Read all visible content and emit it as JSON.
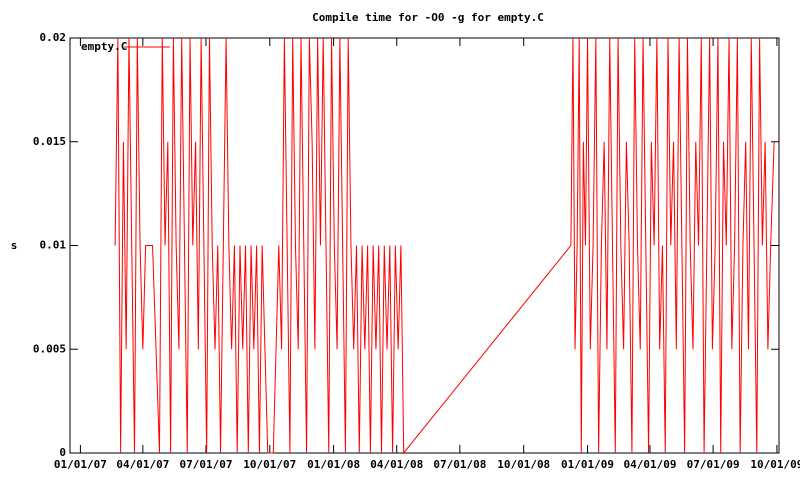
{
  "chart_data": {
    "type": "line",
    "title": "Compile time for -O0 -g for empty.C",
    "y_label": "s",
    "xlim": [
      "12/17/06",
      "10/04/09"
    ],
    "xticks": [
      "01/01/07",
      "04/01/07",
      "07/01/07",
      "10/01/07",
      "01/01/08",
      "04/01/08",
      "07/01/08",
      "10/01/08",
      "01/01/09",
      "04/01/09",
      "07/01/09",
      "10/01/09"
    ],
    "ylim": [
      0,
      0.02
    ],
    "yticks": [
      0,
      0.005,
      0.01,
      0.015,
      0.02
    ],
    "grid": false,
    "legend": "top-left",
    "x": [
      "02/20/07",
      "02/24/07",
      "02/28/07",
      "03/04/07",
      "03/08/07",
      "03/12/07",
      "03/16/07",
      "03/20/07",
      "03/24/07",
      "03/28/07",
      "04/01/07",
      "04/05/07",
      "04/15/07",
      "04/25/07",
      "04/29/07",
      "05/03/07",
      "05/07/07",
      "05/11/07",
      "05/15/07",
      "05/19/07",
      "05/23/07",
      "05/27/07",
      "05/31/07",
      "06/04/07",
      "06/08/07",
      "06/12/07",
      "06/16/07",
      "06/20/07",
      "06/24/07",
      "06/28/07",
      "07/02/07",
      "07/06/07",
      "07/10/07",
      "07/14/07",
      "07/18/07",
      "07/22/07",
      "07/26/07",
      "07/30/07",
      "08/03/07",
      "08/07/07",
      "08/11/07",
      "08/15/07",
      "08/19/07",
      "08/23/07",
      "08/27/07",
      "08/31/07",
      "09/04/07",
      "09/08/07",
      "09/12/07",
      "09/16/07",
      "09/20/07",
      "09/24/07",
      "09/28/07",
      "10/06/07",
      "10/14/07",
      "10/18/07",
      "10/22/07",
      "10/26/07",
      "10/30/07",
      "11/03/07",
      "11/07/07",
      "11/11/07",
      "11/15/07",
      "11/19/07",
      "11/23/07",
      "11/27/07",
      "12/01/07",
      "12/05/07",
      "12/09/07",
      "12/13/07",
      "12/17/07",
      "12/21/07",
      "12/25/07",
      "12/29/07",
      "01/02/08",
      "01/06/08",
      "01/10/08",
      "01/14/08",
      "01/18/08",
      "01/22/08",
      "01/26/08",
      "01/30/08",
      "02/03/08",
      "02/07/08",
      "02/11/08",
      "02/15/08",
      "02/19/08",
      "02/23/08",
      "02/27/08",
      "03/02/08",
      "03/06/08",
      "03/10/08",
      "03/14/08",
      "03/18/08",
      "03/22/08",
      "03/26/08",
      "03/30/08",
      "04/03/08",
      "04/07/08",
      "04/11/08",
      "12/08/08",
      "12/11/08",
      "12/14/08",
      "12/17/08",
      "12/20/08",
      "12/23/08",
      "12/26/08",
      "12/29/08",
      "01/01/09",
      "01/05/09",
      "01/09/09",
      "01/13/09",
      "01/17/09",
      "01/21/09",
      "01/25/09",
      "01/29/09",
      "02/02/09",
      "02/06/09",
      "02/10/09",
      "02/14/09",
      "02/18/09",
      "02/22/09",
      "02/26/09",
      "03/02/09",
      "03/06/09",
      "03/10/09",
      "03/14/09",
      "03/18/09",
      "03/22/09",
      "03/26/09",
      "03/30/09",
      "04/03/09",
      "04/07/09",
      "04/11/09",
      "04/15/09",
      "04/19/09",
      "04/23/09",
      "04/27/09",
      "05/01/09",
      "05/05/09",
      "05/09/09",
      "05/13/09",
      "05/17/09",
      "05/21/09",
      "05/25/09",
      "05/29/09",
      "06/02/09",
      "06/06/09",
      "06/10/09",
      "06/14/09",
      "06/18/09",
      "06/22/09",
      "06/26/09",
      "06/30/09",
      "07/04/09",
      "07/08/09",
      "07/12/09",
      "07/16/09",
      "07/20/09",
      "07/24/09",
      "07/28/09",
      "08/01/09",
      "08/05/09",
      "08/09/09",
      "08/13/09",
      "08/17/09",
      "08/21/09",
      "08/25/09",
      "08/29/09",
      "09/02/09",
      "09/06/09",
      "09/10/09",
      "09/14/09",
      "09/18/09",
      "09/22/09",
      "09/27/09"
    ],
    "series": [
      {
        "name": "empty.C",
        "color": "#ff0000",
        "values": [
          0.01,
          0.02,
          0,
          0.015,
          0.005,
          0.02,
          0.01,
          0,
          0.02,
          0.01,
          0.005,
          0.01,
          0.01,
          0,
          0.02,
          0.01,
          0.015,
          0,
          0.02,
          0.01,
          0.005,
          0.02,
          0.01,
          0,
          0.02,
          0.01,
          0.015,
          0.005,
          0.02,
          0.01,
          0,
          0.02,
          0.01,
          0.005,
          0.01,
          0,
          0.01,
          0.02,
          0.01,
          0.005,
          0.01,
          0,
          0.01,
          0.005,
          0.01,
          0,
          0.01,
          0.005,
          0.01,
          0,
          0.01,
          0.005,
          0,
          0,
          0.01,
          0.005,
          0.02,
          0.01,
          0,
          0.02,
          0.01,
          0.005,
          0.02,
          0.01,
          0,
          0.02,
          0.015,
          0.005,
          0.02,
          0.01,
          0.02,
          0.01,
          0,
          0.02,
          0.01,
          0.005,
          0.02,
          0.01,
          0,
          0.02,
          0.01,
          0.005,
          0.01,
          0,
          0.01,
          0.005,
          0.01,
          0,
          0.01,
          0.005,
          0.01,
          0,
          0.01,
          0.005,
          0.01,
          0,
          0.01,
          0.005,
          0.01,
          0,
          0.01,
          0.02,
          0.005,
          0.01,
          0.02,
          0,
          0.015,
          0.01,
          0.02,
          0.005,
          0.01,
          0.02,
          0,
          0.01,
          0.015,
          0.005,
          0.02,
          0.01,
          0,
          0.02,
          0.01,
          0.005,
          0.015,
          0.01,
          0,
          0.02,
          0.01,
          0.005,
          0.02,
          0.01,
          0,
          0.015,
          0.01,
          0.02,
          0.005,
          0.01,
          0,
          0.02,
          0.01,
          0.015,
          0.005,
          0.02,
          0.01,
          0,
          0.02,
          0.01,
          0.005,
          0.015,
          0.01,
          0.02,
          0,
          0.01,
          0.02,
          0.005,
          0.01,
          0.02,
          0,
          0.015,
          0.01,
          0.02,
          0.005,
          0.01,
          0.02,
          0,
          0.01,
          0.015,
          0.005,
          0.02,
          0.01,
          0,
          0.02,
          0.01,
          0.015,
          0.005,
          0.01,
          0.015
        ]
      }
    ]
  }
}
